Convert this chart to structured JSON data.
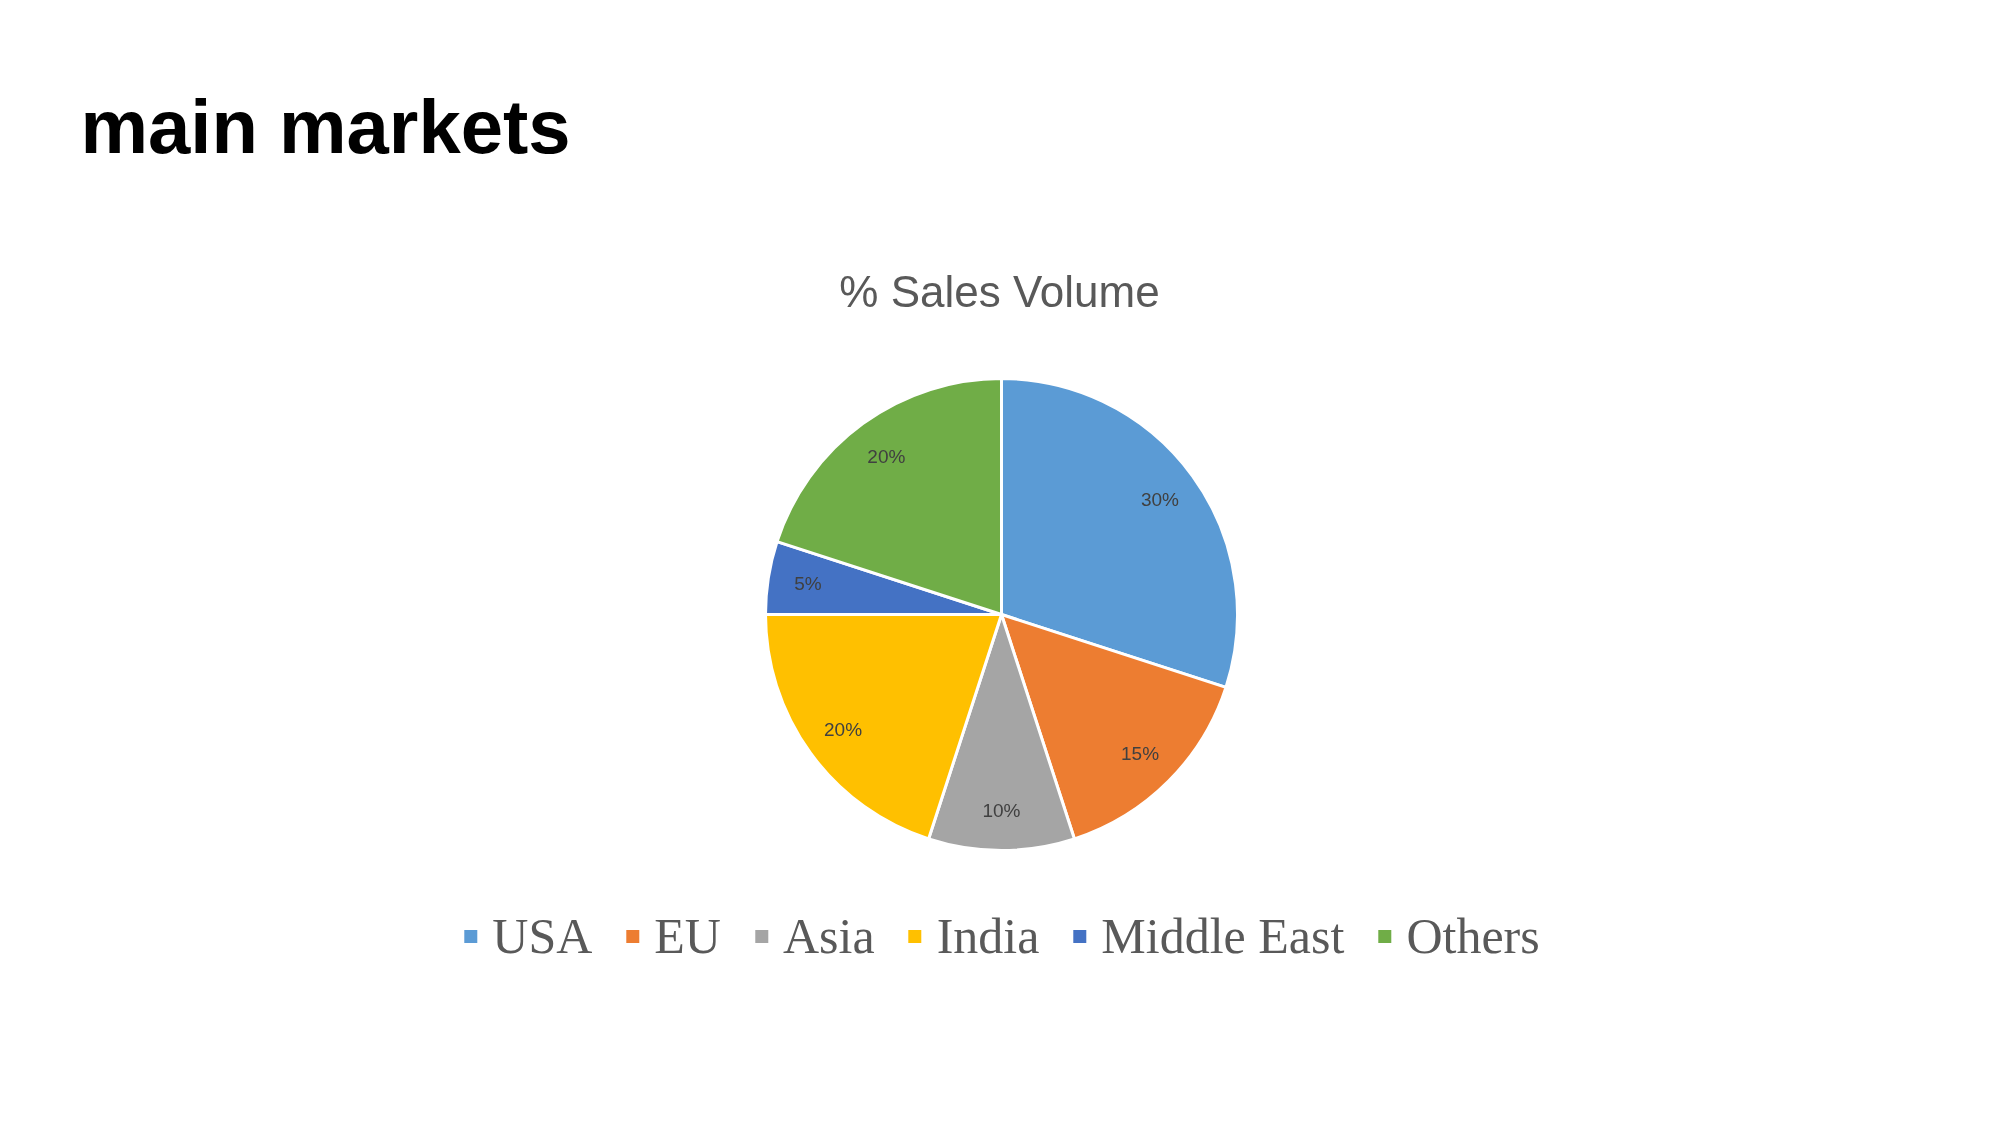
{
  "chart_data": {
    "type": "pie",
    "title": "main markets",
    "subtitle": "% Sales Volume",
    "categories": [
      "USA",
      "EU",
      "Asia",
      "India",
      "Middle East",
      "Others"
    ],
    "values": [
      30,
      15,
      10,
      20,
      5,
      20
    ],
    "colors": [
      "#5b9bd5",
      "#ed7d31",
      "#a5a5a5",
      "#ffc000",
      "#4472c4",
      "#70ad47"
    ],
    "value_labels": [
      "30%",
      "15%",
      "10%",
      "20%",
      "5%",
      "20%"
    ],
    "legend": "bottom"
  }
}
